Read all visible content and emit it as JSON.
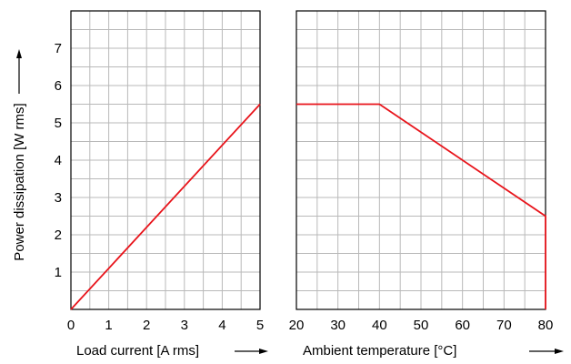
{
  "chart_data": [
    {
      "type": "line",
      "xlabel": "Load current [A rms]",
      "ylabel": "Power dissipation [W rms]",
      "xlim": [
        0,
        5
      ],
      "ylim": [
        0,
        8
      ],
      "xticks": [
        "0",
        "1",
        "2",
        "3",
        "4",
        "5"
      ],
      "yticks": [
        "1",
        "2",
        "3",
        "4",
        "5",
        "6",
        "7"
      ],
      "grid": true,
      "series": [
        {
          "color": "#e8141b",
          "x": [
            0,
            5
          ],
          "y": [
            0,
            5.5
          ]
        }
      ]
    },
    {
      "type": "line",
      "xlabel": "Ambient temperature [°C]",
      "xlim": [
        20,
        80
      ],
      "ylim": [
        0,
        8
      ],
      "xticks": [
        "20",
        "30",
        "40",
        "50",
        "60",
        "70",
        "80"
      ],
      "grid": true,
      "series": [
        {
          "color": "#e8141b",
          "x": [
            20,
            40,
            80,
            80
          ],
          "y": [
            5.5,
            5.5,
            2.5,
            0
          ]
        }
      ]
    }
  ]
}
